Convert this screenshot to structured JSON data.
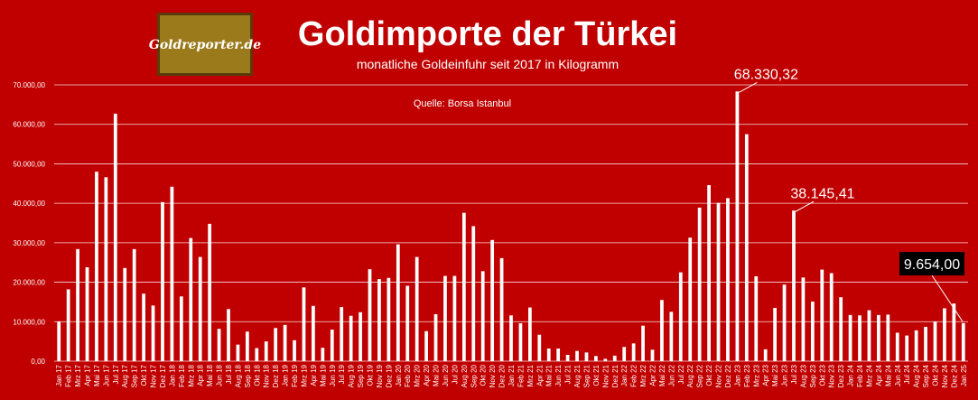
{
  "logo": {
    "text": "Goldreporter.de"
  },
  "chart_data": {
    "type": "bar",
    "title": "Goldimporte der Türkei",
    "subtitle": "monatliche Goldeinfuhr seit 2017 in Kilogramm",
    "source": "Quelle: Borsa Istanbul",
    "ylim": [
      0,
      70000
    ],
    "yticks": [
      "0,00",
      "10.000,00",
      "20.000,00",
      "30.000,00",
      "40.000,00",
      "50.000,00",
      "60.000,00",
      "70.000,00"
    ],
    "grid": true,
    "categories": [
      "Jan 17",
      "Feb 17",
      "Mrz 17",
      "Apr 17",
      "Mai 17",
      "Jun 17",
      "Jul 17",
      "Aug 17",
      "Sep 17",
      "Okt 17",
      "Nov 17",
      "Dez 17",
      "Jan 18",
      "Feb 18",
      "Mrz 18",
      "Apr 18",
      "Mai 18",
      "Jun 18",
      "Jul 18",
      "Aug 18",
      "Sep 18",
      "Okt 18",
      "Nov 18",
      "Dez 18",
      "Jan 19",
      "Feb 19",
      "Mrz 19",
      "Apr 19",
      "Mai 19",
      "Jun 19",
      "Jul 19",
      "Aug 19",
      "Sep 19",
      "Okt 19",
      "Nov 19",
      "Dez 19",
      "Jan 20",
      "Feb 20",
      "Mrz 20",
      "Apr 20",
      "Mai 20",
      "Jun 20",
      "Jul 20",
      "Aug 20",
      "Sep 20",
      "Okt 20",
      "Nov 20",
      "Dez 20",
      "Jan 21",
      "Feb 21",
      "Mrz 21",
      "Apr 21",
      "Mai 21",
      "Jun 21",
      "Jul 21",
      "Aug 21",
      "Sep 21",
      "Okt 21",
      "Nov 21",
      "Dez 21",
      "Jan 22",
      "Feb 22",
      "Mrz 22",
      "Apr 22",
      "Mai 22",
      "Jun 22",
      "Jul 22",
      "Aug 22",
      "Sep 22",
      "Okt 22",
      "Nov 22",
      "Dez 22",
      "Jan 23",
      "Feb 23",
      "Mrz 23",
      "Apr 23",
      "Mai 23",
      "Jun 23",
      "Jul 23",
      "Aug 23",
      "Sep 23",
      "Okt 23",
      "Nov 23",
      "Dez 23",
      "Jan 24",
      "Feb 24",
      "Mrz 24",
      "Apr 24",
      "Mai 24",
      "Jun 24",
      "Jul 24",
      "Aug 24",
      "Sep 24",
      "Okt 24",
      "Nov 24",
      "Dez 24",
      "Jan 25"
    ],
    "values": [
      10000,
      18200,
      28400,
      23800,
      48000,
      46600,
      62700,
      23600,
      28400,
      17100,
      14100,
      40300,
      44200,
      16400,
      31200,
      26400,
      34800,
      8200,
      13200,
      4200,
      7500,
      3300,
      5000,
      8400,
      9200,
      5300,
      18700,
      14000,
      3400,
      8000,
      13700,
      11500,
      12400,
      23300,
      20800,
      21100,
      29600,
      19100,
      26400,
      7600,
      11900,
      21600,
      21600,
      37600,
      34200,
      22800,
      30700,
      26100,
      11600,
      9600,
      13600,
      6700,
      3200,
      3200,
      1600,
      2600,
      2200,
      1300,
      600,
      1400,
      3600,
      4500,
      9000,
      2900,
      15500,
      12500,
      22500,
      31300,
      38900,
      44600,
      40100,
      41300,
      68330.32,
      57500,
      21500,
      3000,
      13500,
      19400,
      38145.41,
      21200,
      15100,
      23200,
      22300,
      16200,
      11700,
      11600,
      12900,
      11700,
      11800,
      7200,
      6500,
      7800,
      8700,
      10000,
      13400,
      14600,
      9654.0
    ],
    "annotations": [
      {
        "label": "68.330,32",
        "category": "Jan 23",
        "value": 68330.32,
        "style": "plain"
      },
      {
        "label": "38.145,41",
        "category": "Jul 23",
        "value": 38145.41,
        "style": "plain"
      },
      {
        "label": "9.654,00",
        "category": "Jan 25",
        "value": 9654.0,
        "style": "boxed"
      }
    ],
    "colors": {
      "background": "#c00000",
      "bars": "#ffffff",
      "logo_bg": "#9b7a1c"
    }
  }
}
